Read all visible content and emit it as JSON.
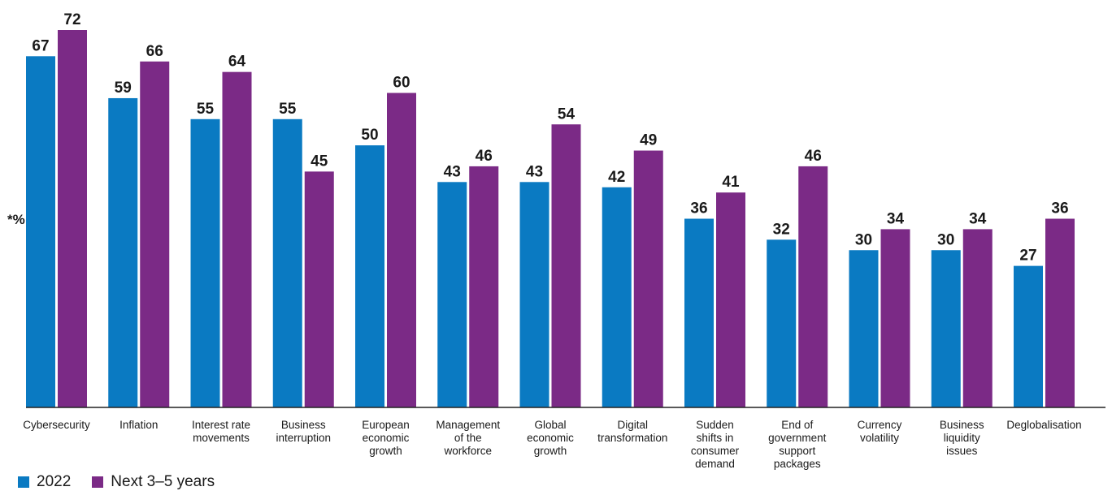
{
  "chart_data": {
    "type": "bar",
    "ylabel": "*%",
    "categories": [
      [
        "Cybersecurity"
      ],
      [
        "Inflation"
      ],
      [
        "Interest rate",
        "movements"
      ],
      [
        "Business",
        "interruption"
      ],
      [
        "European",
        "economic",
        "growth"
      ],
      [
        "Management",
        "of the",
        "workforce"
      ],
      [
        "Global",
        "economic",
        "growth"
      ],
      [
        "Digital",
        "transformation"
      ],
      [
        "Sudden",
        "shifts in",
        "consumer",
        "demand"
      ],
      [
        "End of",
        "government",
        "support",
        "packages"
      ],
      [
        "Currency",
        "volatility"
      ],
      [
        "Business",
        "liquidity",
        "issues"
      ],
      [
        "Deglobalisation"
      ]
    ],
    "series": [
      {
        "name": "2022",
        "color": "#0a7ac2",
        "values": [
          67,
          59,
          55,
          55,
          50,
          43,
          43,
          42,
          36,
          32,
          30,
          30,
          27
        ]
      },
      {
        "name": "Next 3–5 years",
        "color": "#7b2a86",
        "values": [
          72,
          66,
          64,
          45,
          60,
          46,
          54,
          49,
          41,
          46,
          34,
          34,
          36
        ]
      }
    ],
    "ylim": [
      0,
      72
    ],
    "grid": false,
    "legend_position": "bottom-left"
  }
}
